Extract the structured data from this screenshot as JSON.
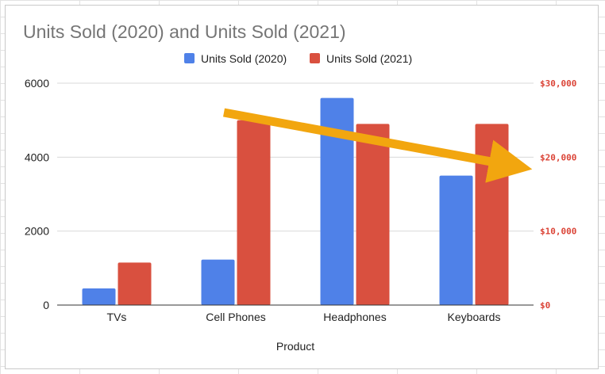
{
  "chart_data": {
    "type": "bar",
    "title": "Units Sold (2020) and Units Sold (2021)",
    "xlabel": "Product",
    "ylabel": "",
    "categories": [
      "TVs",
      "Cell Phones",
      "Headphones",
      "Keyboards"
    ],
    "series": [
      {
        "name": "Units Sold (2020)",
        "color": "#4f81e8",
        "values": [
          450,
          1230,
          5600,
          3500
        ]
      },
      {
        "name": "Units Sold (2021)",
        "color": "#d9503f",
        "values": [
          1150,
          5000,
          4900,
          4900
        ]
      }
    ],
    "ylim": [
      0,
      6000
    ],
    "yticks": [
      "0",
      "2000",
      "4000",
      "6000"
    ],
    "ylim_right": [
      0,
      30000
    ],
    "yticks_right": [
      "$0",
      "$10,000",
      "$20,000",
      "$30,000"
    ],
    "right_axis_color": "#db4437",
    "gridlines": true,
    "legend_position": "top",
    "annotation": {
      "type": "arrow",
      "color": "#f2a60f",
      "direction": "downward trend"
    }
  }
}
